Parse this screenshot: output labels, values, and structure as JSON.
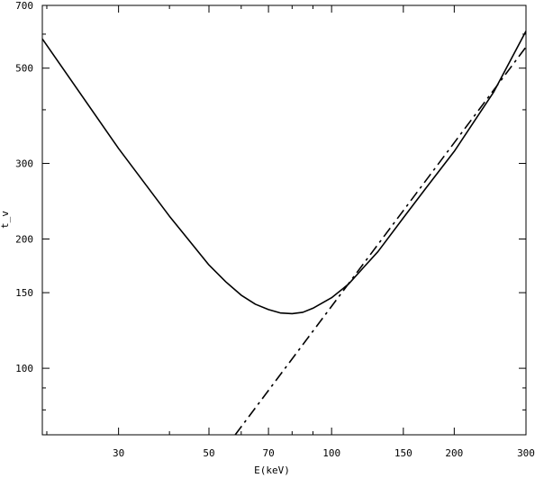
{
  "chart_data": {
    "type": "line",
    "title": "",
    "xlabel": "E(keV)",
    "ylabel": "t_v",
    "x_scale": "log",
    "y_scale": "log",
    "xlim": [
      19.5,
      300
    ],
    "ylim": [
      70,
      700
    ],
    "grid": false,
    "legend": "none",
    "x_ticks": [
      30,
      50,
      70,
      100,
      150,
      200,
      300
    ],
    "x_tick_labels": [
      "30",
      "50",
      "70",
      "100",
      "150",
      "200",
      "300"
    ],
    "y_ticks": [
      100,
      150,
      200,
      300,
      500,
      700
    ],
    "y_tick_labels": [
      "100",
      "150",
      "200",
      "300",
      "500",
      "700"
    ],
    "series": [
      {
        "style": "solid",
        "color": "#000000",
        "x": [
          19.5,
          30,
          40,
          50,
          55,
          60,
          65,
          70,
          75,
          80,
          85,
          90,
          100,
          110,
          120,
          130,
          150,
          170,
          200,
          250,
          300
        ],
        "y": [
          585,
          325,
          226,
          174,
          159,
          148,
          141,
          137,
          134.5,
          134,
          135,
          138,
          146,
          157,
          172,
          187,
          224,
          262,
          320,
          440,
          610
        ]
      },
      {
        "style": "dashdot",
        "color": "#000000",
        "x": [
          58,
          300
        ],
        "y": [
          70,
          560
        ]
      }
    ]
  }
}
